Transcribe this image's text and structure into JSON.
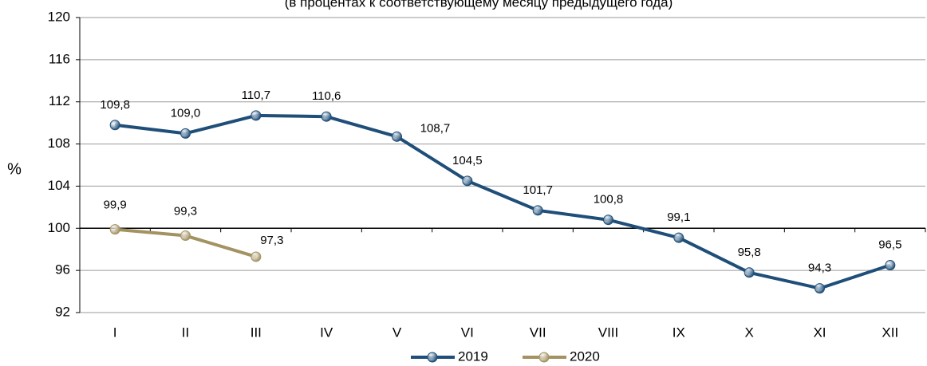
{
  "chart_data": {
    "type": "line",
    "subtitle": "(в процентах к соответствующему месяцу предыдущего года)",
    "ylabel": "%",
    "categories": [
      "I",
      "II",
      "III",
      "IV",
      "V",
      "VI",
      "VII",
      "VIII",
      "IX",
      "X",
      "XI",
      "XII"
    ],
    "series": [
      {
        "name": "2019",
        "color": "#1f4e79",
        "values": [
          109.8,
          109.0,
          110.7,
          110.6,
          108.7,
          104.5,
          101.7,
          100.8,
          99.1,
          95.8,
          94.3,
          96.5
        ],
        "value_labels": [
          "109,8",
          "109,0",
          "110,7",
          "110,6",
          "108,7",
          "104,5",
          "101,7",
          "100,8",
          "99,1",
          "95,8",
          "94,3",
          "96,5"
        ]
      },
      {
        "name": "2020",
        "color": "#a39262",
        "values": [
          99.9,
          99.3,
          97.3,
          null,
          null,
          null,
          null,
          null,
          null,
          null,
          null,
          null
        ],
        "value_labels": [
          "99,9",
          "99,3",
          "97,3",
          null,
          null,
          null,
          null,
          null,
          null,
          null,
          null,
          null
        ]
      }
    ],
    "ylim": [
      92,
      120
    ],
    "yticks": [
      92,
      96,
      100,
      104,
      108,
      112,
      116,
      120
    ],
    "grid": true,
    "xaxis_at": 100,
    "legend": "bottom"
  }
}
